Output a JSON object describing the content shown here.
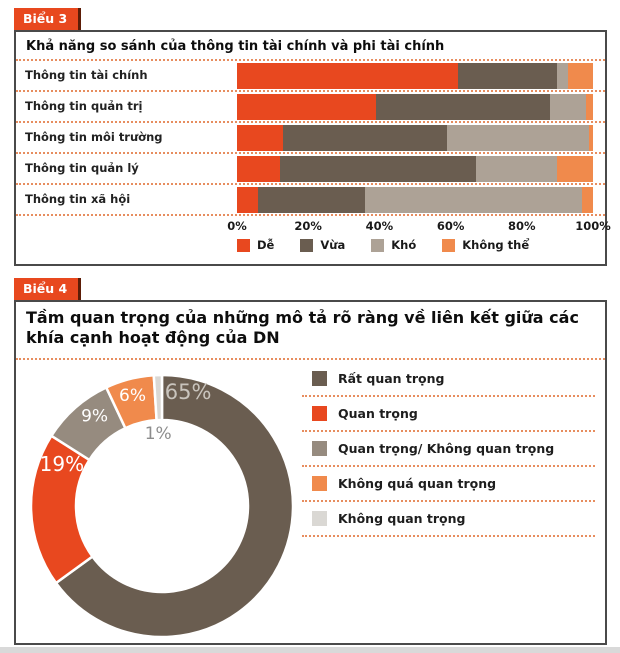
{
  "accent_color": "#E8481F",
  "chart3_panel": {
    "tab_label": "Biểu 3",
    "title": "Khả năng so sánh của thông tin tài chính và phi tài chính"
  },
  "chart4_panel": {
    "tab_label": "Biểu 4",
    "title": "Tầm quan trọng của những mô tả rõ ràng về liên kết giữa các khía cạnh hoạt động của DN"
  },
  "chart_data": [
    {
      "type": "bar",
      "orientation": "horizontal_stacked",
      "title": "Khả năng so sánh của thông tin tài chính và phi tài chính",
      "unit": "%",
      "categories": [
        "Thông tin tài chính",
        "Thông tin quản trị",
        "Thông tin môi trường",
        "Thông tin quản lý",
        "Thông tin xã hội"
      ],
      "series": [
        {
          "name": "Dễ",
          "color": "#E8481F",
          "values": [
            62,
            39,
            13,
            12,
            6
          ]
        },
        {
          "name": "Vừa",
          "color": "#6A5D50",
          "values": [
            28,
            49,
            46,
            55,
            30
          ]
        },
        {
          "name": "Khó",
          "color": "#ADA296",
          "values": [
            3,
            10,
            40,
            23,
            61
          ]
        },
        {
          "name": "Không thể",
          "color": "#F08A4C",
          "values": [
            7,
            2,
            1,
            10,
            3
          ]
        }
      ],
      "x_ticks": [
        "0%",
        "20%",
        "40%",
        "60%",
        "80%",
        "100%"
      ],
      "xlim": [
        0,
        100
      ],
      "grid": false,
      "legend_position": "bottom"
    },
    {
      "type": "pie",
      "subtype": "donut",
      "title": "Tầm quan trọng của những mô tả rõ ràng về liên kết giữa các khía cạnh hoạt động của DN",
      "labels": [
        "Rất quan trọng",
        "Quan trọng",
        "Quan trọng/ Không quan trọng",
        "Không quá quan trọng",
        "Không quan trọng"
      ],
      "values": [
        65,
        19,
        9,
        6,
        1
      ],
      "value_labels": [
        "65%",
        "19%",
        "9%",
        "6%",
        "1%"
      ],
      "colors": [
        "#6A5D50",
        "#E8481F",
        "#968B7F",
        "#F08A4C",
        "#DAD8D4"
      ],
      "start_angle_deg": 0,
      "direction": "clockwise",
      "legend_position": "right"
    }
  ]
}
